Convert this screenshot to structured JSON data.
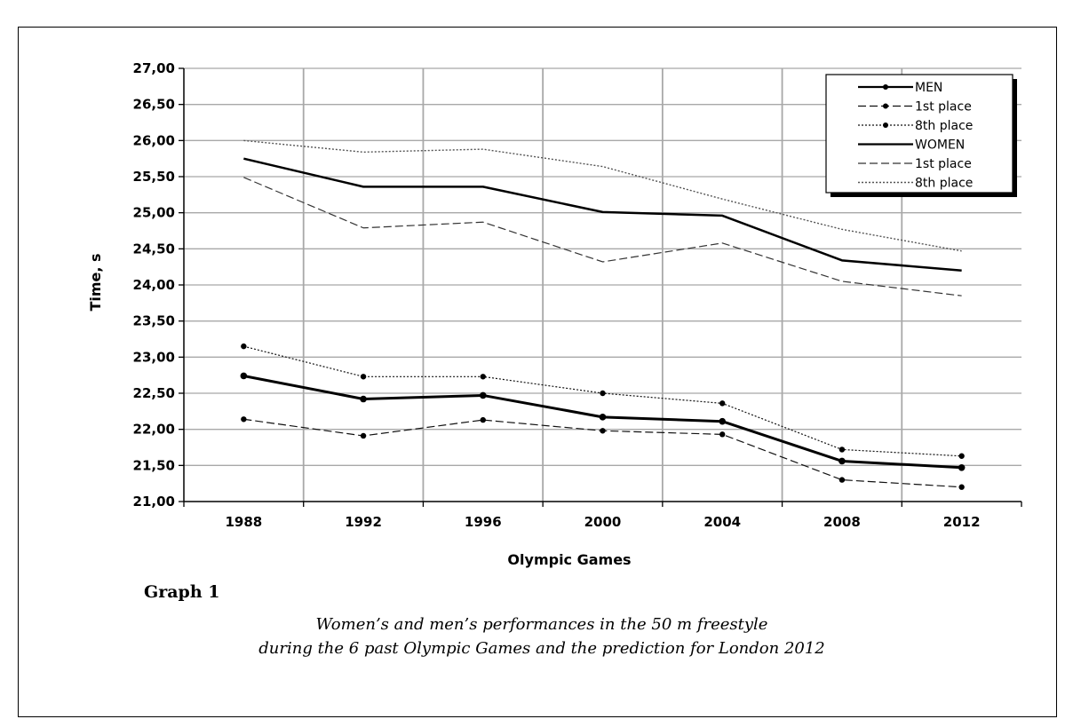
{
  "chart_data": {
    "type": "line",
    "x": [
      "1988",
      "1992",
      "1996",
      "2000",
      "2004",
      "2008",
      "2012"
    ],
    "xlabel": "Olympic Games",
    "ylabel": "Time, s",
    "ylim": [
      21.0,
      27.0
    ],
    "yticks": [
      "21,00",
      "21,50",
      "22,00",
      "22,50",
      "23,00",
      "23,50",
      "24,00",
      "24,50",
      "25,00",
      "25,50",
      "26,00",
      "26,50",
      "27,00"
    ],
    "grid": true,
    "legend": "top-right",
    "series": [
      {
        "name": "MEN",
        "group": "men",
        "style": "solid-marker",
        "values": [
          22.74,
          22.42,
          22.47,
          22.17,
          22.11,
          21.56,
          21.47
        ]
      },
      {
        "name": "1st place",
        "group": "men",
        "style": "dashed-marker",
        "values": [
          22.14,
          21.91,
          22.13,
          21.98,
          21.93,
          21.3,
          21.2
        ]
      },
      {
        "name": "8th place",
        "group": "men",
        "style": "dotted-marker",
        "values": [
          23.15,
          22.73,
          22.73,
          22.5,
          22.36,
          21.72,
          21.63
        ]
      },
      {
        "name": "WOMEN",
        "group": "women",
        "style": "solid",
        "values": [
          25.75,
          25.36,
          25.36,
          25.01,
          24.96,
          24.34,
          24.2
        ]
      },
      {
        "name": "1st place",
        "group": "women",
        "style": "dashed",
        "values": [
          25.49,
          24.79,
          24.87,
          24.32,
          24.58,
          24.05,
          23.85
        ]
      },
      {
        "name": "8th place",
        "group": "women",
        "style": "dotted",
        "values": [
          26.0,
          25.84,
          25.88,
          25.64,
          25.19,
          24.77,
          24.47
        ]
      }
    ]
  },
  "figure": {
    "label": "Graph 1",
    "caption_line1": "Women’s and men’s performances in the 50 m freestyle",
    "caption_line2": "during the 6 past Olympic Games and the prediction for London 2012"
  }
}
